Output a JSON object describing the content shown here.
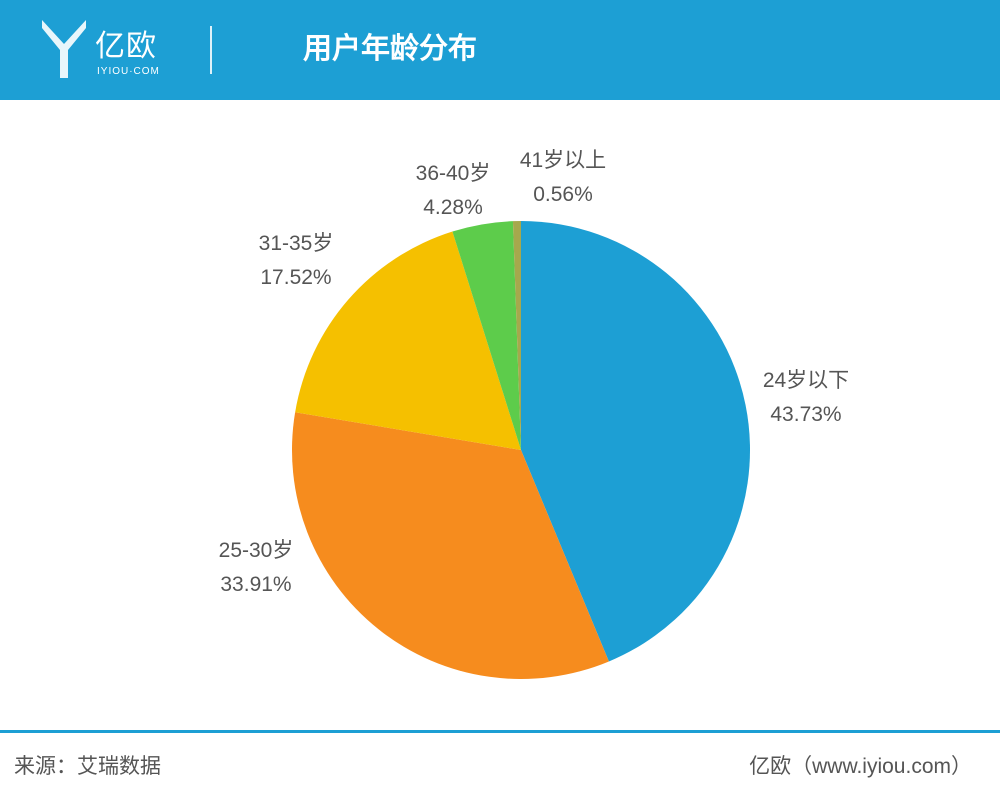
{
  "header": {
    "logo_text": "亿欧",
    "logo_sub": "IYIOU·COM",
    "title": "用户年龄分布"
  },
  "chart_data": {
    "type": "pie",
    "title": "用户年龄分布",
    "categories": [
      "24岁以下",
      "25-30岁",
      "31-35岁",
      "36-40岁",
      "41岁以上"
    ],
    "values": [
      43.73,
      33.91,
      17.52,
      4.28,
      0.56
    ],
    "value_labels": [
      "43.73%",
      "33.91%",
      "17.52%",
      "4.28%",
      "0.56%"
    ],
    "colors": [
      "#1d9fd4",
      "#f68c1e",
      "#f5c000",
      "#5dcc4b",
      "#a6a84d"
    ],
    "start_angle": "12 o'clock",
    "direction": "clockwise",
    "legend": "none (labels beside slices)"
  },
  "footer": {
    "source": "来源：艾瑞数据",
    "credit": "亿欧（www.iyiou.com）"
  },
  "colors": {
    "header_bg": "#1d9fd4",
    "text_gray": "#555555"
  }
}
